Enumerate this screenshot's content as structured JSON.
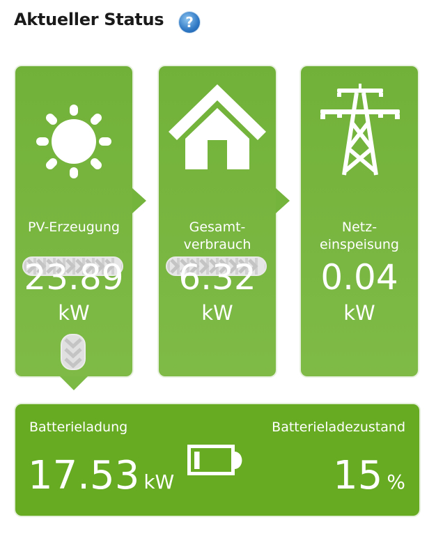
{
  "header": {
    "title": "Aktueller Status",
    "help_icon": "?"
  },
  "cards": [
    {
      "icon": "sun-icon",
      "label_lines": [
        "PV-Erzeugung"
      ],
      "value": "23.89",
      "unit": "kW"
    },
    {
      "icon": "house-icon",
      "label_lines": [
        "Gesamt-",
        "verbrauch"
      ],
      "value": "6.32",
      "unit": "kW"
    },
    {
      "icon": "power-pylon-icon",
      "label_lines": [
        "Netz-",
        "einspeisung"
      ],
      "value": "0.04",
      "unit": "kW"
    }
  ],
  "battery": {
    "charge_label": "Batterieladung",
    "charge_value": "17.53",
    "charge_unit": "kW",
    "soc_label": "Batterieladezustand",
    "soc_value": "15",
    "soc_unit": "%",
    "soc_percent": 15
  },
  "colors": {
    "card_green": "#74b33c",
    "battery_green": "#67ab22",
    "help_blue": "#2f78c4"
  }
}
